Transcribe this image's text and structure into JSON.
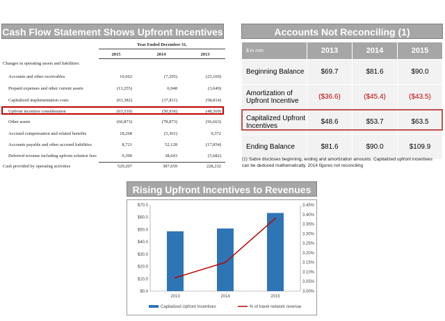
{
  "cash_flow": {
    "title": "Cash Flow Statement Shows Upfront Incentives",
    "header": "Year Ended December 31,",
    "years": [
      "2015",
      "2014",
      "2013"
    ],
    "section": "Changes in operating assets and liabilities:",
    "rows": [
      {
        "label": "Accounts and other receivables",
        "v2015": "10,662",
        "v2014": "(7,295)",
        "v2013": "(23,169)"
      },
      {
        "label": "Prepaid expenses and other current assets",
        "v2015": "(13,255)",
        "v2014": "6,948",
        "v2013": "(3,649)"
      },
      {
        "label": "Capitalized implementation costs",
        "v2015": "(63,382)",
        "v2014": "(37,811)",
        "v2013": "(58,814)"
      },
      {
        "label": "Upfront incentive consideration",
        "v2015": "(63,510)",
        "v2014": "(50,936)",
        "v2013": "(48,569)"
      },
      {
        "label": "Other assets",
        "v2015": "(66,873)",
        "v2014": "(78,873)",
        "v2013": "(56,663)"
      },
      {
        "label": "Accrued compensation and related benefits",
        "v2015": "18,268",
        "v2014": "(5,301)",
        "v2013": "9,372"
      },
      {
        "label": "Accounts payable and other accrued liabilities",
        "v2015": "8,721",
        "v2014": "52,128",
        "v2013": "(17,854)"
      },
      {
        "label": "Deferred revenue including upfront solution fees",
        "v2015": "9,390",
        "v2014": "38,643",
        "v2013": "(5,682)"
      }
    ],
    "total": {
      "label": "Cash provided by operating activities",
      "v2015": "529,207",
      "v2014": "387,659",
      "v2013": "228,232"
    }
  },
  "accounts": {
    "title": "Accounts Not Reconciling (1)",
    "unit": "$ in mm",
    "years": [
      "2013",
      "2014",
      "2015"
    ],
    "rows": [
      {
        "label": "Beginning Balance",
        "values": [
          "$69.7",
          "$81.6",
          "$90.0"
        ],
        "negative": false
      },
      {
        "label": "Amortization of Upfront Incentive",
        "values": [
          "($36.6)",
          "($45.4)",
          "($43.5)"
        ],
        "negative": true
      },
      {
        "label": "Capitalized Upfront Incentives",
        "values": [
          "$48.6",
          "$53.7",
          "$63.5"
        ],
        "negative": false
      },
      {
        "label": "Ending Balance",
        "values": [
          "$81.6",
          "$90.0",
          "$109.9"
        ],
        "negative": false
      }
    ],
    "footnote": "(1) Sabre discloses beginning, ending and amortization amounts. Capitalized upfront incentives can be deduced mathematically. 2014 figures not reconciling"
  },
  "chart_title": "Rising Upfront Incentives to Revenues",
  "chart_data": {
    "type": "bar",
    "categories": [
      "2013",
      "2014",
      "2015"
    ],
    "series": [
      {
        "name": "Capitalized Upfront Incentives",
        "values": [
          48.6,
          50.9,
          63.5
        ],
        "axis": "left",
        "kind": "bar",
        "color": "#2e75b6"
      },
      {
        "name": "% of travel network revenue",
        "values": [
          3.07,
          3.15,
          3.38
        ],
        "axis": "right",
        "kind": "line",
        "color": "#c00000"
      }
    ],
    "ylim_left": [
      0,
      70
    ],
    "ylim_right": [
      3.0,
      3.45
    ],
    "yticks_left": [
      "$0.0",
      "$10.0",
      "$20.0",
      "$30.0",
      "$40.0",
      "$50.0",
      "$60.0",
      "$70.0"
    ],
    "yticks_right": [
      "3.00%",
      "3.05%",
      "3.10%",
      "3.15%",
      "3.20%",
      "3.25%",
      "3.30%",
      "3.35%",
      "3.40%",
      "3.45%"
    ],
    "legend": "bottom"
  }
}
